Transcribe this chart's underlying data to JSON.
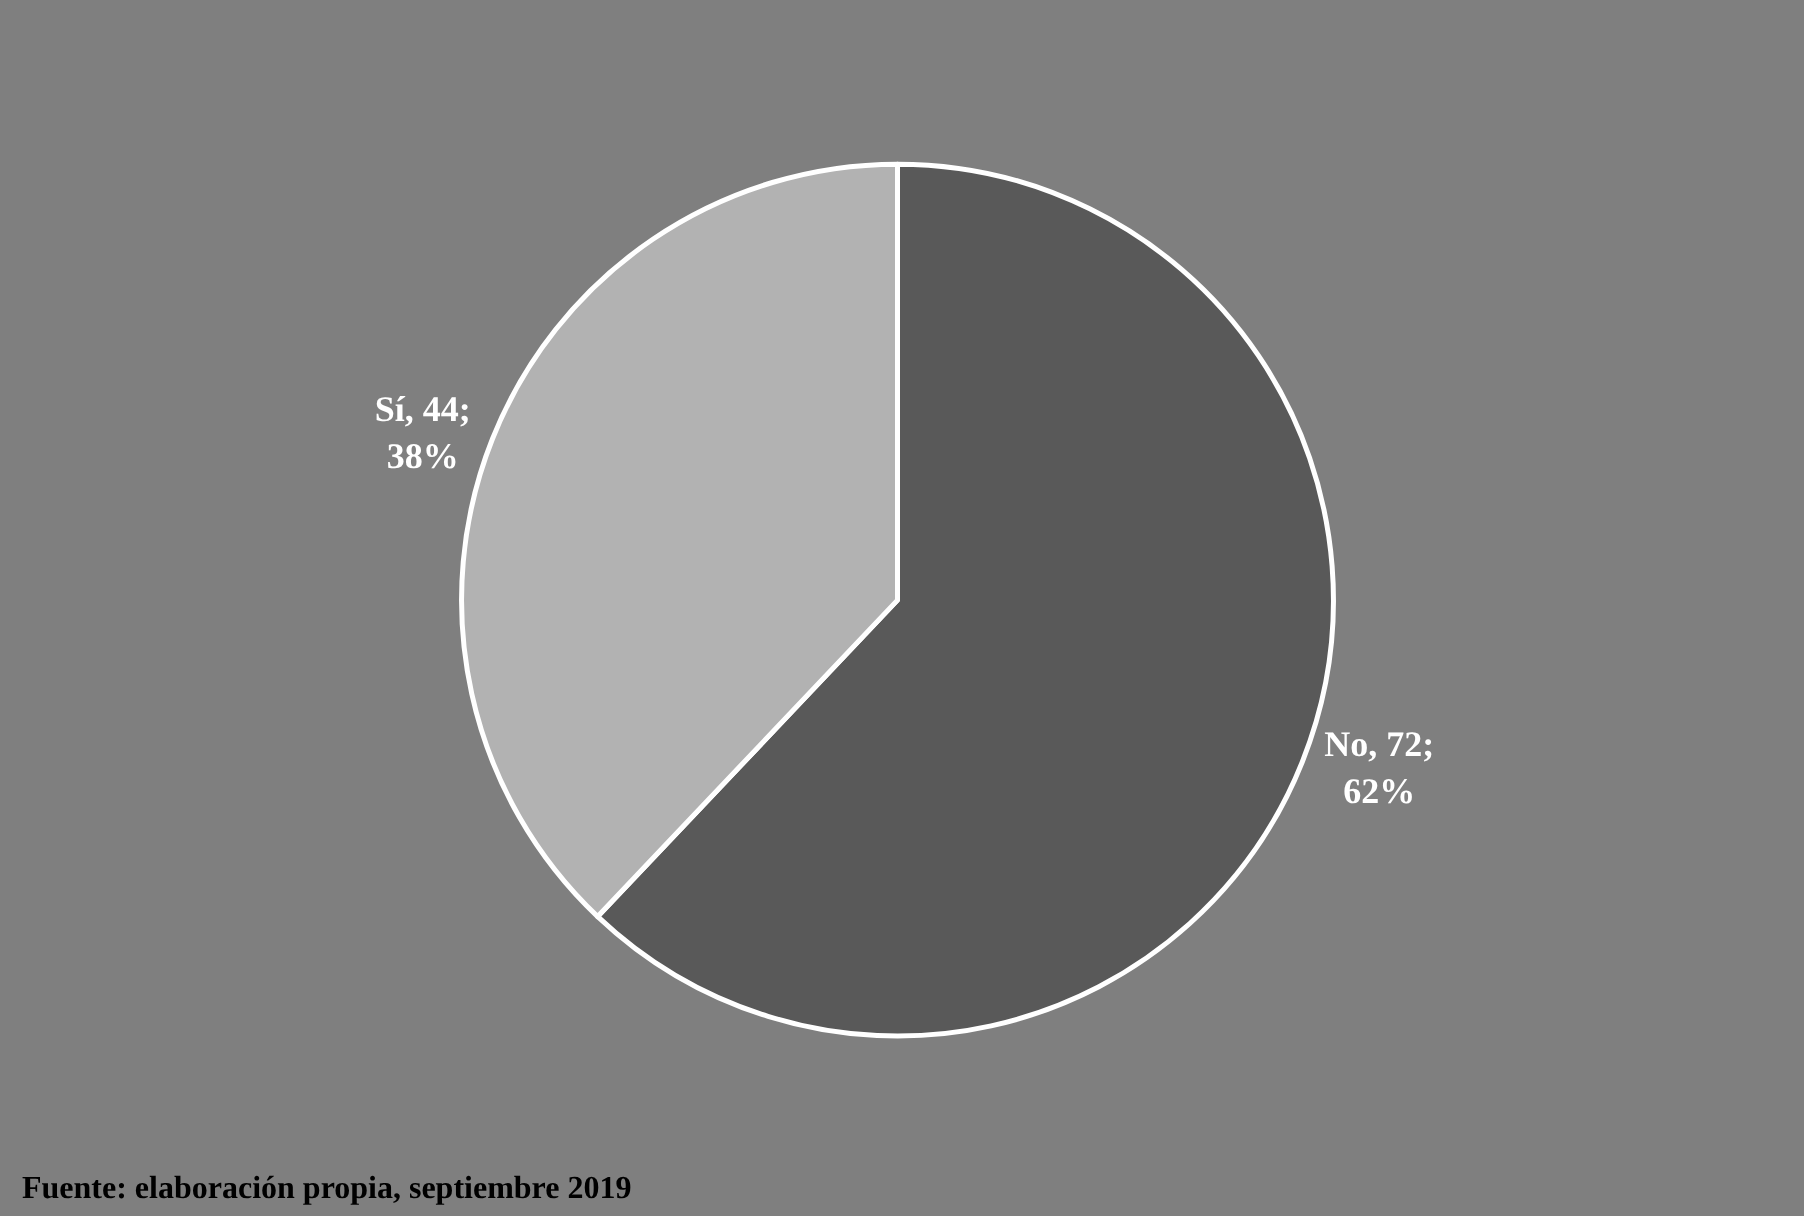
{
  "chart_data": {
    "type": "pie",
    "categories": [
      "No",
      "Sí"
    ],
    "values": [
      72,
      44
    ],
    "colors": [
      "#595959",
      "#b2b2b2"
    ],
    "value_labels": [
      "72; 62%",
      "44; 38%"
    ],
    "annotations": [
      "Fuente: elaboración propia, septiembre 2019"
    ],
    "legend": false
  }
}
